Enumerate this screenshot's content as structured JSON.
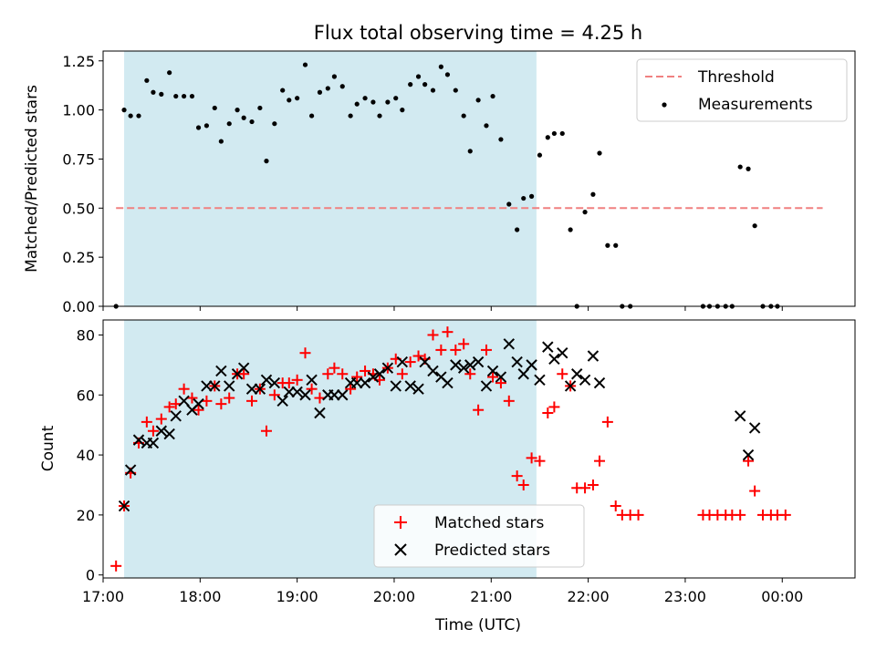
{
  "figure": {
    "title": "Flux total observing time = 4.25 h",
    "xlabel": "Time (UTC)",
    "x_ticks": [
      "17:00",
      "18:00",
      "19:00",
      "20:00",
      "21:00",
      "22:00",
      "23:00",
      "00:00"
    ]
  },
  "colors": {
    "threshold": "#f08080",
    "measurement": "#000000",
    "matched": "#ff0000",
    "predicted": "#000000",
    "shade": "#add8e6"
  },
  "chart_data": [
    {
      "type": "scatter",
      "ylabel": "Matched/Predicted stars",
      "xlim": [
        "17:00",
        "00:45"
      ],
      "ylim": [
        0,
        1.3
      ],
      "y_ticks": [
        "0.00",
        "0.25",
        "0.50",
        "0.75",
        "1.00",
        "1.25"
      ],
      "shaded_interval": [
        "17:13",
        "21:28"
      ],
      "threshold": {
        "name": "Threshold",
        "value": 0.5,
        "x_range": [
          "17:08",
          "00:25"
        ]
      },
      "legend": {
        "placement": "upper right"
      },
      "series": [
        {
          "name": "Measurements",
          "points": [
            [
              "17:08",
              0.0
            ],
            [
              "17:13",
              1.0
            ],
            [
              "17:17",
              0.97
            ],
            [
              "17:22",
              0.97
            ],
            [
              "17:27",
              1.15
            ],
            [
              "17:31",
              1.09
            ],
            [
              "17:36",
              1.08
            ],
            [
              "17:41",
              1.19
            ],
            [
              "17:45",
              1.07
            ],
            [
              "17:50",
              1.07
            ],
            [
              "17:55",
              1.07
            ],
            [
              "17:59",
              0.91
            ],
            [
              "18:04",
              0.92
            ],
            [
              "18:09",
              1.01
            ],
            [
              "18:13",
              0.84
            ],
            [
              "18:18",
              0.93
            ],
            [
              "18:23",
              1.0
            ],
            [
              "18:27",
              0.96
            ],
            [
              "18:32",
              0.94
            ],
            [
              "18:37",
              1.01
            ],
            [
              "18:41",
              0.74
            ],
            [
              "18:46",
              0.93
            ],
            [
              "18:51",
              1.1
            ],
            [
              "18:55",
              1.05
            ],
            [
              "19:00",
              1.06
            ],
            [
              "19:05",
              1.23
            ],
            [
              "19:09",
              0.97
            ],
            [
              "19:14",
              1.09
            ],
            [
              "19:19",
              1.11
            ],
            [
              "19:23",
              1.17
            ],
            [
              "19:28",
              1.12
            ],
            [
              "19:33",
              0.97
            ],
            [
              "19:37",
              1.03
            ],
            [
              "19:42",
              1.06
            ],
            [
              "19:47",
              1.04
            ],
            [
              "19:51",
              0.97
            ],
            [
              "19:56",
              1.04
            ],
            [
              "20:01",
              1.06
            ],
            [
              "20:05",
              1.0
            ],
            [
              "20:10",
              1.13
            ],
            [
              "20:15",
              1.17
            ],
            [
              "20:19",
              1.13
            ],
            [
              "20:24",
              1.1
            ],
            [
              "20:29",
              1.22
            ],
            [
              "20:33",
              1.18
            ],
            [
              "20:38",
              1.1
            ],
            [
              "20:43",
              0.97
            ],
            [
              "20:47",
              0.79
            ],
            [
              "20:52",
              1.05
            ],
            [
              "20:57",
              0.92
            ],
            [
              "21:01",
              1.07
            ],
            [
              "21:06",
              0.85
            ],
            [
              "21:11",
              0.52
            ],
            [
              "21:16",
              0.39
            ],
            [
              "21:20",
              0.55
            ],
            [
              "21:25",
              0.56
            ],
            [
              "21:30",
              0.77
            ],
            [
              "21:35",
              0.86
            ],
            [
              "21:39",
              0.88
            ],
            [
              "21:44",
              0.88
            ],
            [
              "21:49",
              0.39
            ],
            [
              "21:53",
              0.0
            ],
            [
              "21:58",
              0.48
            ],
            [
              "22:03",
              0.57
            ],
            [
              "22:07",
              0.78
            ],
            [
              "22:12",
              0.31
            ],
            [
              "22:17",
              0.31
            ],
            [
              "22:21",
              0.0
            ],
            [
              "22:26",
              0.0
            ],
            [
              "23:11",
              0.0
            ],
            [
              "23:15",
              0.0
            ],
            [
              "23:20",
              0.0
            ],
            [
              "23:25",
              0.0
            ],
            [
              "23:29",
              0.0
            ],
            [
              "23:34",
              0.71
            ],
            [
              "23:39",
              0.7
            ],
            [
              "23:43",
              0.41
            ],
            [
              "23:48",
              0.0
            ],
            [
              "23:53",
              0.0
            ],
            [
              "23:57",
              0.0
            ]
          ]
        }
      ]
    },
    {
      "type": "scatter",
      "ylabel": "Count",
      "xlim": [
        "17:00",
        "00:45"
      ],
      "ylim": [
        -1,
        85
      ],
      "y_ticks": [
        "0",
        "20",
        "40",
        "60",
        "80"
      ],
      "shaded_interval": [
        "17:13",
        "21:28"
      ],
      "legend": {
        "placement": "lower center"
      },
      "series": [
        {
          "name": "Matched stars",
          "marker": "+",
          "points": [
            [
              "17:08",
              3
            ],
            [
              "17:13",
              23
            ],
            [
              "17:17",
              34
            ],
            [
              "17:22",
              44
            ],
            [
              "17:27",
              51
            ],
            [
              "17:31",
              48
            ],
            [
              "17:36",
              52
            ],
            [
              "17:41",
              56
            ],
            [
              "17:45",
              57
            ],
            [
              "17:50",
              62
            ],
            [
              "17:55",
              59
            ],
            [
              "17:59",
              55
            ],
            [
              "18:04",
              58
            ],
            [
              "18:09",
              63
            ],
            [
              "18:13",
              57
            ],
            [
              "18:18",
              59
            ],
            [
              "18:23",
              67
            ],
            [
              "18:27",
              67
            ],
            [
              "18:32",
              58
            ],
            [
              "18:37",
              62
            ],
            [
              "18:41",
              48
            ],
            [
              "18:46",
              60
            ],
            [
              "18:51",
              64
            ],
            [
              "18:55",
              64
            ],
            [
              "19:00",
              65
            ],
            [
              "19:05",
              74
            ],
            [
              "19:09",
              62
            ],
            [
              "19:14",
              59
            ],
            [
              "19:19",
              67
            ],
            [
              "19:23",
              69
            ],
            [
              "19:28",
              67
            ],
            [
              "19:33",
              62
            ],
            [
              "19:37",
              66
            ],
            [
              "19:42",
              68
            ],
            [
              "19:47",
              67
            ],
            [
              "19:51",
              65
            ],
            [
              "19:56",
              69
            ],
            [
              "20:01",
              72
            ],
            [
              "20:05",
              67
            ],
            [
              "20:10",
              71
            ],
            [
              "20:15",
              73
            ],
            [
              "20:19",
              72
            ],
            [
              "20:24",
              80
            ],
            [
              "20:29",
              75
            ],
            [
              "20:33",
              81
            ],
            [
              "20:38",
              75
            ],
            [
              "20:43",
              77
            ],
            [
              "20:47",
              67
            ],
            [
              "20:52",
              55
            ],
            [
              "20:57",
              75
            ],
            [
              "21:01",
              66
            ],
            [
              "21:06",
              64
            ],
            [
              "21:11",
              58
            ],
            [
              "21:16",
              33
            ],
            [
              "21:20",
              30
            ],
            [
              "21:25",
              39
            ],
            [
              "21:30",
              38
            ],
            [
              "21:35",
              54
            ],
            [
              "21:39",
              56
            ],
            [
              "21:44",
              67
            ],
            [
              "21:49",
              63
            ],
            [
              "21:53",
              29
            ],
            [
              "21:58",
              29
            ],
            [
              "22:03",
              30
            ],
            [
              "22:07",
              38
            ],
            [
              "22:12",
              51
            ],
            [
              "22:17",
              23
            ],
            [
              "22:21",
              20
            ],
            [
              "22:26",
              20
            ],
            [
              "22:31",
              20
            ],
            [
              "23:11",
              20
            ],
            [
              "23:15",
              20
            ],
            [
              "23:20",
              20
            ],
            [
              "23:25",
              20
            ],
            [
              "23:29",
              20
            ],
            [
              "23:34",
              20
            ],
            [
              "23:39",
              38
            ],
            [
              "23:43",
              28
            ],
            [
              "23:48",
              20
            ],
            [
              "23:53",
              20
            ],
            [
              "23:57",
              20
            ],
            [
              "00:02",
              20
            ]
          ]
        },
        {
          "name": "Predicted stars",
          "marker": "x",
          "points": [
            [
              "17:13",
              23
            ],
            [
              "17:17",
              35
            ],
            [
              "17:22",
              45
            ],
            [
              "17:27",
              44
            ],
            [
              "17:31",
              44
            ],
            [
              "17:36",
              48
            ],
            [
              "17:41",
              47
            ],
            [
              "17:45",
              53
            ],
            [
              "17:50",
              58
            ],
            [
              "17:55",
              55
            ],
            [
              "17:59",
              57
            ],
            [
              "18:04",
              63
            ],
            [
              "18:09",
              63
            ],
            [
              "18:13",
              68
            ],
            [
              "18:18",
              63
            ],
            [
              "18:23",
              67
            ],
            [
              "18:27",
              69
            ],
            [
              "18:32",
              62
            ],
            [
              "18:37",
              62
            ],
            [
              "18:41",
              65
            ],
            [
              "18:46",
              64
            ],
            [
              "18:51",
              58
            ],
            [
              "18:55",
              61
            ],
            [
              "19:00",
              61
            ],
            [
              "19:05",
              60
            ],
            [
              "19:09",
              65
            ],
            [
              "19:14",
              54
            ],
            [
              "19:19",
              60
            ],
            [
              "19:23",
              60
            ],
            [
              "19:28",
              60
            ],
            [
              "19:33",
              64
            ],
            [
              "19:37",
              64
            ],
            [
              "19:42",
              64
            ],
            [
              "19:47",
              66
            ],
            [
              "19:51",
              67
            ],
            [
              "19:56",
              69
            ],
            [
              "20:01",
              63
            ],
            [
              "20:05",
              71
            ],
            [
              "20:10",
              63
            ],
            [
              "20:15",
              62
            ],
            [
              "20:19",
              71
            ],
            [
              "20:24",
              68
            ],
            [
              "20:29",
              66
            ],
            [
              "20:33",
              64
            ],
            [
              "20:38",
              70
            ],
            [
              "20:43",
              69
            ],
            [
              "20:47",
              70
            ],
            [
              "20:52",
              71
            ],
            [
              "20:57",
              63
            ],
            [
              "21:01",
              68
            ],
            [
              "21:06",
              66
            ],
            [
              "21:11",
              77
            ],
            [
              "21:16",
              71
            ],
            [
              "21:20",
              67
            ],
            [
              "21:25",
              70
            ],
            [
              "21:30",
              65
            ],
            [
              "21:35",
              76
            ],
            [
              "21:39",
              72
            ],
            [
              "21:44",
              74
            ],
            [
              "21:49",
              63
            ],
            [
              "21:53",
              67
            ],
            [
              "21:58",
              65
            ],
            [
              "22:03",
              73
            ],
            [
              "22:07",
              64
            ],
            [
              "23:34",
              53
            ],
            [
              "23:39",
              40
            ],
            [
              "23:43",
              49
            ]
          ]
        }
      ]
    }
  ]
}
